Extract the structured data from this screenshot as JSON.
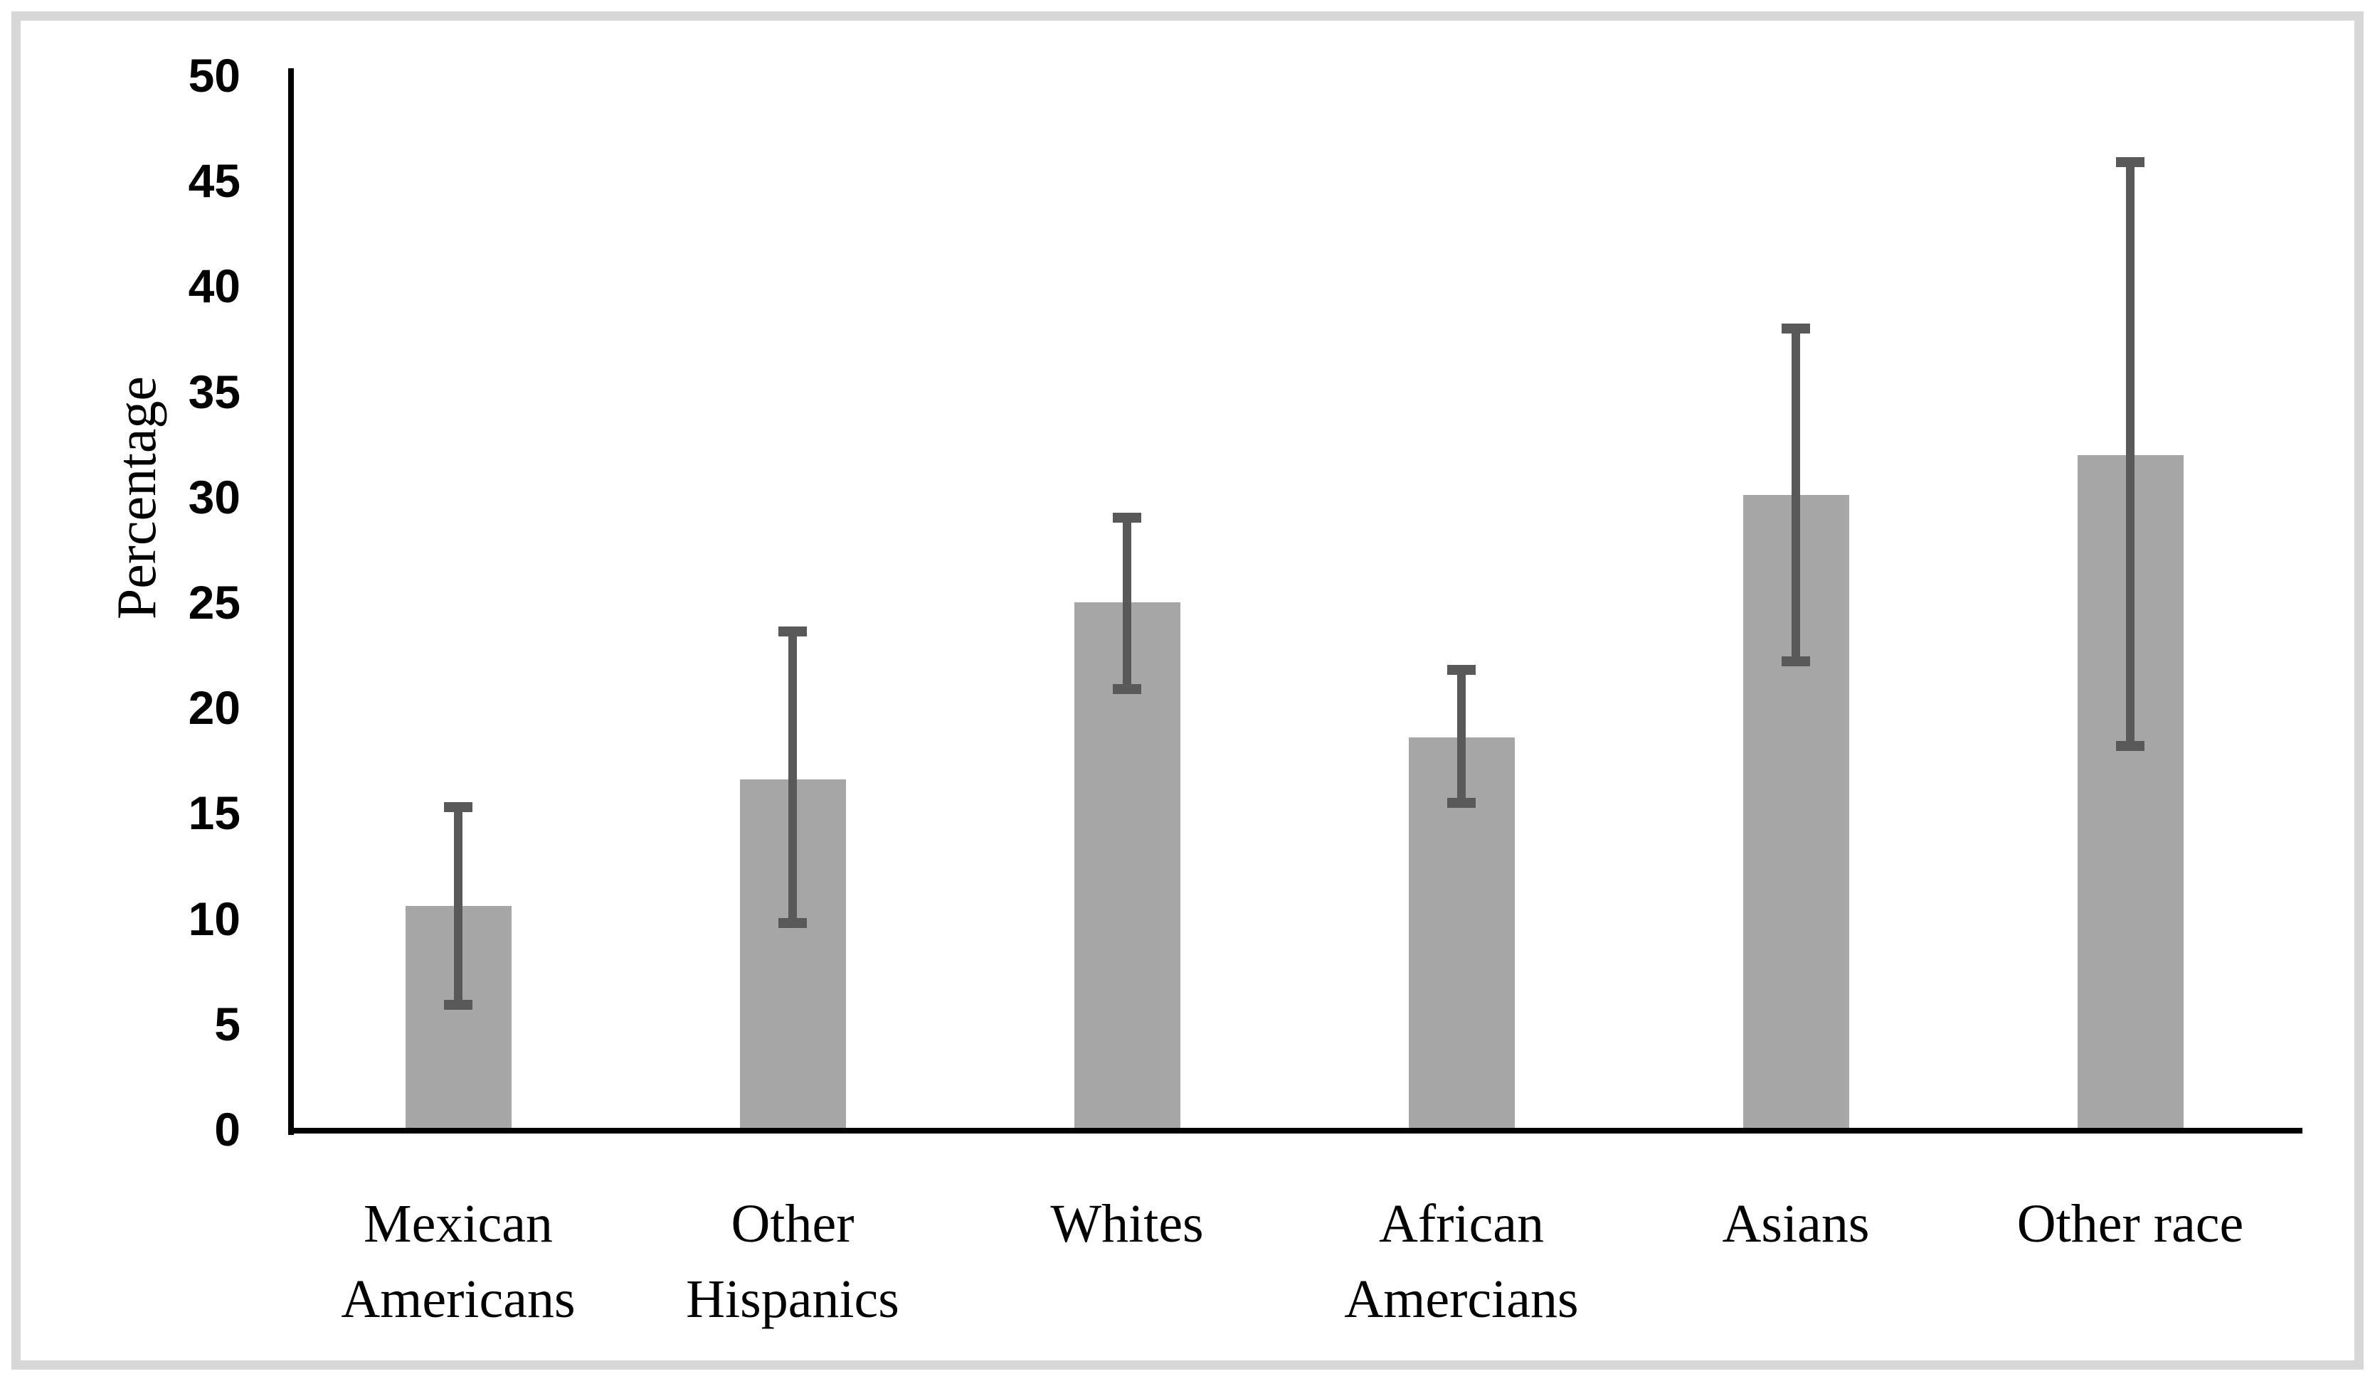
{
  "figure": {
    "background_color": "#ffffff",
    "border_color": "#d7d7d7",
    "axis_color": "#000000"
  },
  "chart_data": {
    "type": "bar",
    "title": "",
    "xlabel": "",
    "ylabel": "Percentage",
    "categories": [
      "Mexican\nAmericans",
      "Other\nHispanics",
      "Whites",
      "African\nAmercians",
      "Asians",
      "Other race"
    ],
    "values": [
      10.6,
      16.6,
      25.0,
      18.6,
      30.1,
      32.0
    ],
    "error_low": [
      5.9,
      9.8,
      20.9,
      15.5,
      22.2,
      18.2
    ],
    "error_high": [
      15.3,
      23.6,
      29.0,
      21.8,
      38.0,
      45.9
    ],
    "ylim": [
      0,
      50
    ],
    "yticks": [
      0,
      5,
      10,
      15,
      20,
      25,
      30,
      35,
      40,
      45,
      50
    ],
    "grid": false,
    "legend": false,
    "bar_color": "#a6a6a6",
    "error_bar_color": "#595959"
  }
}
